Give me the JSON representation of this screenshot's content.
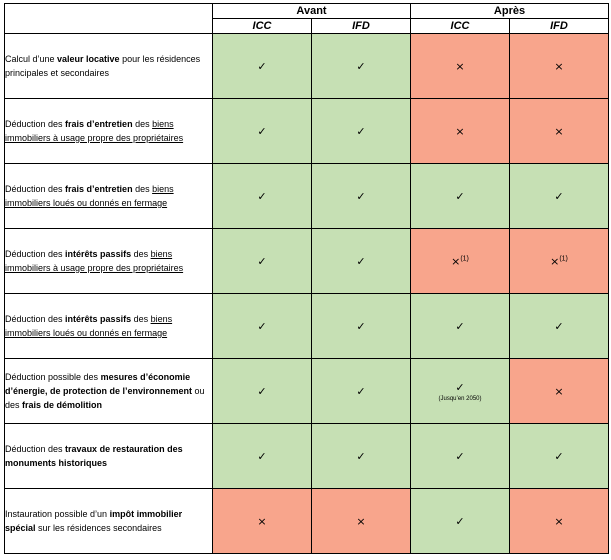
{
  "header": {
    "groups": [
      "Avant",
      "Après"
    ],
    "columns": [
      "ICC",
      "IFD",
      "ICC",
      "IFD"
    ]
  },
  "symbols": {
    "yes": "✓",
    "no": "×"
  },
  "colors": {
    "yes": "#c6e0b4",
    "no": "#f8a58c"
  },
  "rows": [
    {
      "segments": [
        {
          "text": "Calcul d’une ",
          "style": "normal"
        },
        {
          "text": "valeur locative",
          "style": "bold"
        },
        {
          "text": " pour les résidences principales et secondaires",
          "style": "normal"
        }
      ],
      "cells": [
        {
          "status": "yes",
          "mark": "✓"
        },
        {
          "status": "yes",
          "mark": "✓"
        },
        {
          "status": "no",
          "mark": "×"
        },
        {
          "status": "no",
          "mark": "×"
        }
      ]
    },
    {
      "segments": [
        {
          "text": "Déduction des ",
          "style": "normal"
        },
        {
          "text": "frais d’entretien",
          "style": "bold"
        },
        {
          "text": " des ",
          "style": "normal"
        },
        {
          "text": "biens immobiliers à usage propre des propriétaires",
          "style": "underline"
        }
      ],
      "cells": [
        {
          "status": "yes",
          "mark": "✓"
        },
        {
          "status": "yes",
          "mark": "✓"
        },
        {
          "status": "no",
          "mark": "×"
        },
        {
          "status": "no",
          "mark": "×"
        }
      ]
    },
    {
      "segments": [
        {
          "text": "Déduction des ",
          "style": "normal"
        },
        {
          "text": "frais d’entretien",
          "style": "bold"
        },
        {
          "text": " des ",
          "style": "normal"
        },
        {
          "text": "biens immobiliers loués ou donnés en fermage",
          "style": "underline"
        }
      ],
      "cells": [
        {
          "status": "yes",
          "mark": "✓"
        },
        {
          "status": "yes",
          "mark": "✓"
        },
        {
          "status": "yes",
          "mark": "✓"
        },
        {
          "status": "yes",
          "mark": "✓"
        }
      ]
    },
    {
      "segments": [
        {
          "text": "Déduction des ",
          "style": "normal"
        },
        {
          "text": "intérêts passifs",
          "style": "bold"
        },
        {
          "text": " des ",
          "style": "normal"
        },
        {
          "text": "biens immobiliers à usage propre des propriétaires",
          "style": "underline"
        }
      ],
      "cells": [
        {
          "status": "yes",
          "mark": "✓"
        },
        {
          "status": "yes",
          "mark": "✓"
        },
        {
          "status": "no",
          "mark": "×",
          "sup": "(1)"
        },
        {
          "status": "no",
          "mark": "×",
          "sup": "(1)"
        }
      ]
    },
    {
      "segments": [
        {
          "text": "Déduction des ",
          "style": "normal"
        },
        {
          "text": "intérêts passifs",
          "style": "bold"
        },
        {
          "text": " des ",
          "style": "normal"
        },
        {
          "text": "biens immobiliers loués ou donnés en fermage",
          "style": "underline"
        }
      ],
      "cells": [
        {
          "status": "yes",
          "mark": "✓"
        },
        {
          "status": "yes",
          "mark": "✓"
        },
        {
          "status": "yes",
          "mark": "✓"
        },
        {
          "status": "yes",
          "mark": "✓"
        }
      ]
    },
    {
      "segments": [
        {
          "text": "Déduction possible des ",
          "style": "normal"
        },
        {
          "text": "mesures d’économie d’énergie, de protection de l’environnement",
          "style": "bold"
        },
        {
          "text": " ou des ",
          "style": "normal"
        },
        {
          "text": "frais de démolition",
          "style": "bold"
        }
      ],
      "cells": [
        {
          "status": "yes",
          "mark": "✓"
        },
        {
          "status": "yes",
          "mark": "✓"
        },
        {
          "status": "yes",
          "mark": "✓",
          "note": "(Jusqu’en 2050)"
        },
        {
          "status": "no",
          "mark": "×"
        }
      ]
    },
    {
      "segments": [
        {
          "text": "Déduction des ",
          "style": "normal"
        },
        {
          "text": "travaux de restauration des monuments historiques",
          "style": "bold"
        }
      ],
      "cells": [
        {
          "status": "yes",
          "mark": "✓"
        },
        {
          "status": "yes",
          "mark": "✓"
        },
        {
          "status": "yes",
          "mark": "✓"
        },
        {
          "status": "yes",
          "mark": "✓"
        }
      ]
    },
    {
      "segments": [
        {
          "text": "Instauration possible d’un ",
          "style": "normal"
        },
        {
          "text": "impôt immobilier spécial",
          "style": "bold"
        },
        {
          "text": " sur les résidences secondaires",
          "style": "normal"
        }
      ],
      "cells": [
        {
          "status": "no",
          "mark": "×"
        },
        {
          "status": "no",
          "mark": "×"
        },
        {
          "status": "yes",
          "mark": "✓"
        },
        {
          "status": "no",
          "mark": "×"
        }
      ]
    }
  ]
}
